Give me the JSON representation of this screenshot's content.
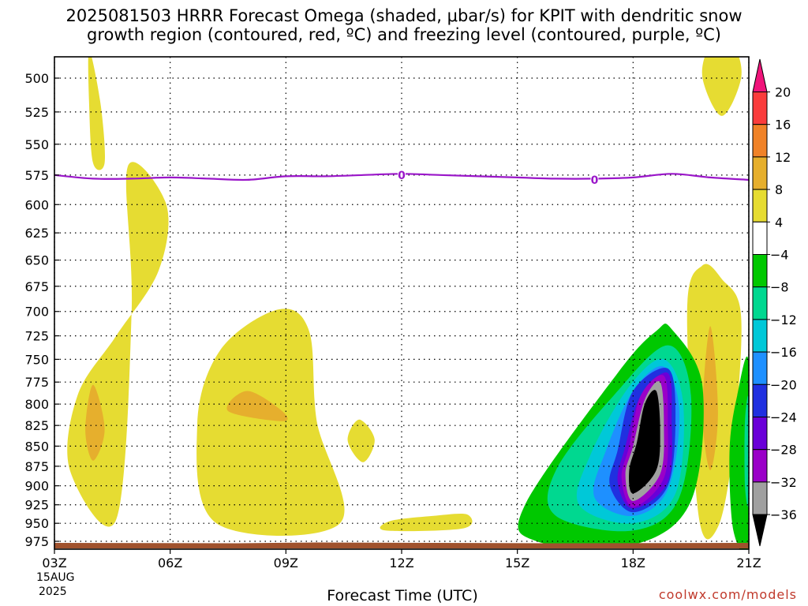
{
  "title_line1": "2025081503 HRRR Forecast Omega (shaded, μbar/s) for KPIT with dendritic snow",
  "title_line2": "growth region (contoured, red, ºC) and freezing level (contoured, purple, ºC)",
  "xlabel": "Forecast Time (UTC)",
  "credit": "coolwx.com/models",
  "date_label": [
    "15AUG",
    "2025"
  ],
  "freezing_contour_label": "0",
  "colors": {
    "freezing_line": "#9a16c9",
    "ground": "#a0522d",
    "grid": "#000000"
  },
  "chart_data": {
    "type": "heatmap",
    "title": "2025081503 HRRR Forecast Omega (shaded, μbar/s) for KPIT with dendritic snow growth region (contoured, red, ºC) and freezing level (contoured, purple, ºC)",
    "xlabel": "Forecast Time (UTC)",
    "ylabel": "",
    "x_ticks": [
      "03Z",
      "06Z",
      "09Z",
      "12Z",
      "15Z",
      "18Z",
      "21Z"
    ],
    "x_hours": [
      3,
      6,
      9,
      12,
      15,
      18,
      21
    ],
    "xlim": [
      3,
      21
    ],
    "y_ticks": [
      500,
      525,
      550,
      575,
      600,
      625,
      650,
      675,
      700,
      725,
      750,
      775,
      800,
      825,
      850,
      875,
      900,
      925,
      950,
      975
    ],
    "ylim": [
      475,
      985
    ],
    "y_scale": "log",
    "y_reversed": true,
    "grid": true,
    "colorbar": {
      "levels": [
        -36,
        -32,
        -28,
        -24,
        -20,
        -16,
        -12,
        -8,
        -4,
        4,
        8,
        12,
        16,
        20
      ],
      "colors": [
        "#000000",
        "#a0a0a0",
        "#9a00c8",
        "#6a00d8",
        "#2030e0",
        "#1e90ff",
        "#00c8d8",
        "#00d890",
        "#00c800",
        "#ffffff",
        "#e6dc32",
        "#e6af2d",
        "#f08228",
        "#fa3c3c",
        "#f0147a"
      ]
    },
    "freezing_level": {
      "label": "0",
      "hours": [
        3,
        4,
        5,
        6,
        7,
        8,
        9,
        10,
        11,
        12,
        13,
        14,
        15,
        16,
        17,
        18,
        19,
        20,
        21
      ],
      "pressure": [
        575,
        578,
        578,
        577,
        578,
        579,
        576,
        576,
        575,
        574,
        575,
        576,
        577,
        578,
        578,
        577,
        574,
        577,
        579
      ]
    },
    "shaded_regions": [
      {
        "class": "4 to 8",
        "hours": [
          3.9,
          4.2,
          4.3,
          4.0,
          3.9
        ],
        "pressure": [
          480,
          520,
          565,
          565,
          520
        ]
      },
      {
        "class": "4 to 8",
        "hours": [
          4.9,
          5.9,
          5.7,
          4.6,
          3.6,
          3.4,
          4.6,
          5.0
        ],
        "pressure": [
          568,
          600,
          660,
          725,
          790,
          880,
          945,
          700
        ]
      },
      {
        "class": "8 to 12",
        "hours": [
          4.0,
          4.3,
          4.0,
          3.8
        ],
        "pressure": [
          778,
          830,
          868,
          830
        ]
      },
      {
        "class": "4 to 8",
        "hours": [
          8.8,
          9.6,
          9.8,
          10.4,
          7.2,
          6.7,
          7.3
        ],
        "pressure": [
          698,
          720,
          820,
          950,
          950,
          825,
          740
        ]
      },
      {
        "class": "8 to 12",
        "hours": [
          8.0,
          8.9,
          8.9,
          7.5
        ],
        "pressure": [
          785,
          808,
          820,
          808
        ]
      },
      {
        "class": "4 to 8",
        "hours": [
          10.9,
          11.3,
          11.0,
          10.6
        ],
        "pressure": [
          818,
          842,
          870,
          843
        ]
      },
      {
        "class": "4 to 8",
        "hours": [
          11.7,
          12.8,
          13.7,
          13.6,
          11.6
        ],
        "pressure": [
          947,
          940,
          938,
          957,
          960
        ]
      },
      {
        "class": "4 to 8",
        "hours": [
          20.0,
          20.6,
          20.8,
          20.3,
          19.8
        ],
        "pressure": [
          478,
          478,
          500,
          528,
          500
        ]
      },
      {
        "class": "4 to 8",
        "hours": [
          19.8,
          20.3,
          20.8,
          20.6,
          20.2,
          19.7,
          19.4
        ],
        "pressure": [
          655,
          668,
          705,
          850,
          955,
          940,
          700
        ]
      },
      {
        "class": "8 to 12",
        "hours": [
          20.0,
          20.2,
          20.0,
          19.8
        ],
        "pressure": [
          715,
          810,
          880,
          810
        ]
      },
      {
        "class": "-8 to -4",
        "hours": [
          19.0,
          19.8,
          19.5,
          18.0,
          15.5,
          15.2,
          17.6,
          18.6
        ],
        "pressure": [
          718,
          780,
          920,
          980,
          975,
          925,
          765,
          720
        ]
      },
      {
        "class": "-12 to -8",
        "hours": [
          18.9,
          19.5,
          19.2,
          18.0,
          16.0,
          16.0,
          17.5
        ],
        "pressure": [
          735,
          790,
          915,
          960,
          940,
          880,
          790
        ]
      },
      {
        "class": "-16 to -12",
        "hours": [
          18.8,
          19.3,
          19.1,
          18.0,
          16.6,
          16.9,
          17.9
        ],
        "pressure": [
          750,
          800,
          910,
          950,
          925,
          860,
          780
        ]
      },
      {
        "class": "-20 to -16",
        "hours": [
          18.8,
          19.2,
          18.9,
          18.0,
          17.0,
          17.3,
          18.0
        ],
        "pressure": [
          758,
          810,
          905,
          940,
          915,
          855,
          785
        ]
      },
      {
        "class": "-24 to -20",
        "hours": [
          18.9,
          19.1,
          18.9,
          18.0,
          17.4,
          17.6,
          18.0
        ],
        "pressure": [
          760,
          812,
          900,
          935,
          900,
          855,
          785
        ]
      },
      {
        "class": "-28 to -24",
        "hours": [
          18.9,
          19.0,
          18.9,
          18.0,
          17.6,
          17.8,
          18.2
        ],
        "pressure": [
          765,
          815,
          895,
          930,
          895,
          850,
          790
        ]
      },
      {
        "class": "-32 to -28",
        "hours": [
          18.8,
          18.9,
          18.8,
          18.0,
          17.7,
          17.9,
          18.2
        ],
        "pressure": [
          768,
          820,
          890,
          928,
          890,
          850,
          790
        ]
      },
      {
        "class": "-36 to -32",
        "hours": [
          18.7,
          18.8,
          18.7,
          18.0,
          17.8,
          18.0,
          18.3
        ],
        "pressure": [
          775,
          825,
          885,
          920,
          885,
          850,
          795
        ]
      },
      {
        "class": "< -36",
        "hours": [
          18.6,
          18.7,
          18.6,
          18.0,
          17.9,
          18.1,
          18.3
        ],
        "pressure": [
          785,
          830,
          880,
          910,
          880,
          845,
          800
        ]
      },
      {
        "class": "-8 to -4",
        "hours": [
          21.0,
          21.0,
          20.6,
          20.5,
          20.7
        ],
        "pressure": [
          755,
          975,
          960,
          855,
          790
        ]
      },
      {
        "class": "-12 to -8",
        "hours": [
          21.0,
          21.0,
          20.9,
          20.9
        ],
        "pressure": [
          795,
          920,
          900,
          820
        ]
      }
    ]
  }
}
